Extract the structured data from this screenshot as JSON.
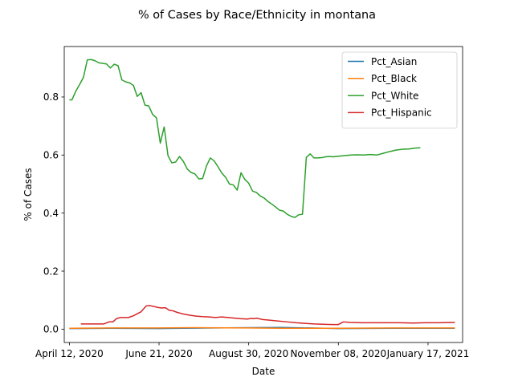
{
  "chart_data": {
    "type": "line",
    "title": "% of Cases by Race/Ethnicity in montana",
    "xlabel": "Date",
    "ylabel": "% of Cases",
    "xlim": [
      "2020-04-08",
      "2021-02-13"
    ],
    "ylim": [
      -0.046,
      0.974
    ],
    "x_ticks": [
      "2020-04-12",
      "2020-06-21",
      "2020-08-30",
      "2020-11-08",
      "2021-01-17"
    ],
    "x_tick_labels": [
      "April 12, 2020",
      "June 21, 2020",
      "August 30, 2020",
      "November 08, 2020",
      "January 17, 2021"
    ],
    "y_ticks": [
      0.0,
      0.2,
      0.4,
      0.6,
      0.8
    ],
    "y_tick_labels": [
      "0.0",
      "0.2",
      "0.4",
      "0.6",
      "0.8"
    ],
    "grid": false,
    "legend_position": "upper right",
    "series": [
      {
        "name": "Pct_Asian",
        "color": "#1f77b4",
        "points": [
          [
            "2020-04-12",
            0.002
          ],
          [
            "2020-05-12",
            0.003
          ],
          [
            "2020-06-21",
            0.002
          ],
          [
            "2020-07-10",
            0.003
          ],
          [
            "2020-08-30",
            0.005
          ],
          [
            "2020-09-25",
            0.006
          ],
          [
            "2020-11-08",
            0.002
          ],
          [
            "2020-12-20",
            0.003
          ],
          [
            "2021-02-07",
            0.003
          ]
        ]
      },
      {
        "name": "Pct_Black",
        "color": "#ff7f0e",
        "points": [
          [
            "2020-04-12",
            0.003
          ],
          [
            "2020-05-12",
            0.004
          ],
          [
            "2020-06-21",
            0.004
          ],
          [
            "2020-07-20",
            0.005
          ],
          [
            "2020-08-30",
            0.004
          ],
          [
            "2020-09-25",
            0.003
          ],
          [
            "2020-11-08",
            0.003
          ],
          [
            "2020-12-20",
            0.004
          ],
          [
            "2021-02-07",
            0.004
          ]
        ]
      },
      {
        "name": "Pct_White",
        "color": "#2ca02c",
        "points": [
          [
            "2020-04-12",
            0.79
          ],
          [
            "2020-04-14",
            0.79
          ],
          [
            "2020-04-17",
            0.82
          ],
          [
            "2020-04-20",
            0.843
          ],
          [
            "2020-04-23",
            0.868
          ],
          [
            "2020-04-26",
            0.928
          ],
          [
            "2020-04-29",
            0.929
          ],
          [
            "2020-05-02",
            0.925
          ],
          [
            "2020-05-05",
            0.918
          ],
          [
            "2020-05-08",
            0.916
          ],
          [
            "2020-05-11",
            0.914
          ],
          [
            "2020-05-14",
            0.9
          ],
          [
            "2020-05-17",
            0.913
          ],
          [
            "2020-05-20",
            0.908
          ],
          [
            "2020-05-23",
            0.859
          ],
          [
            "2020-05-26",
            0.852
          ],
          [
            "2020-05-29",
            0.849
          ],
          [
            "2020-06-01",
            0.84
          ],
          [
            "2020-06-04",
            0.802
          ],
          [
            "2020-06-07",
            0.815
          ],
          [
            "2020-06-10",
            0.772
          ],
          [
            "2020-06-13",
            0.769
          ],
          [
            "2020-06-16",
            0.74
          ],
          [
            "2020-06-19",
            0.728
          ],
          [
            "2020-06-22",
            0.641
          ],
          [
            "2020-06-25",
            0.697
          ],
          [
            "2020-06-28",
            0.598
          ],
          [
            "2020-07-01",
            0.573
          ],
          [
            "2020-07-04",
            0.576
          ],
          [
            "2020-07-07",
            0.595
          ],
          [
            "2020-07-10",
            0.578
          ],
          [
            "2020-07-13",
            0.552
          ],
          [
            "2020-07-16",
            0.54
          ],
          [
            "2020-07-19",
            0.535
          ],
          [
            "2020-07-22",
            0.518
          ],
          [
            "2020-07-25",
            0.519
          ],
          [
            "2020-07-28",
            0.562
          ],
          [
            "2020-07-31",
            0.59
          ],
          [
            "2020-08-03",
            0.58
          ],
          [
            "2020-08-06",
            0.56
          ],
          [
            "2020-08-09",
            0.538
          ],
          [
            "2020-08-12",
            0.523
          ],
          [
            "2020-08-15",
            0.5
          ],
          [
            "2020-08-18",
            0.497
          ],
          [
            "2020-08-21",
            0.479
          ],
          [
            "2020-08-24",
            0.539
          ],
          [
            "2020-08-27",
            0.516
          ],
          [
            "2020-08-30",
            0.503
          ],
          [
            "2020-09-02",
            0.476
          ],
          [
            "2020-09-05",
            0.471
          ],
          [
            "2020-09-08",
            0.459
          ],
          [
            "2020-09-11",
            0.452
          ],
          [
            "2020-09-14",
            0.44
          ],
          [
            "2020-09-17",
            0.431
          ],
          [
            "2020-09-20",
            0.421
          ],
          [
            "2020-09-23",
            0.41
          ],
          [
            "2020-09-26",
            0.407
          ],
          [
            "2020-09-29",
            0.396
          ],
          [
            "2020-10-02",
            0.389
          ],
          [
            "2020-10-05",
            0.385
          ],
          [
            "2020-10-08",
            0.394
          ],
          [
            "2020-10-11",
            0.396
          ],
          [
            "2020-10-14",
            0.592
          ],
          [
            "2020-10-17",
            0.604
          ],
          [
            "2020-10-20",
            0.59
          ],
          [
            "2020-10-23",
            0.59
          ],
          [
            "2020-10-26",
            0.591
          ],
          [
            "2020-10-29",
            0.594
          ],
          [
            "2020-11-01",
            0.595
          ],
          [
            "2020-11-04",
            0.594
          ],
          [
            "2020-11-08",
            0.596
          ],
          [
            "2020-11-13",
            0.598
          ],
          [
            "2020-11-18",
            0.6
          ],
          [
            "2020-11-23",
            0.601
          ],
          [
            "2020-11-28",
            0.6
          ],
          [
            "2020-12-03",
            0.602
          ],
          [
            "2020-12-08",
            0.6
          ],
          [
            "2020-12-13",
            0.606
          ],
          [
            "2020-12-18",
            0.612
          ],
          [
            "2020-12-23",
            0.617
          ],
          [
            "2020-12-28",
            0.62
          ],
          [
            "2021-01-02",
            0.621
          ],
          [
            "2021-01-07",
            0.624
          ],
          [
            "2021-01-11",
            0.625
          ]
        ]
      },
      {
        "name": "Pct_Hispanic",
        "color": "#d62728",
        "points": [
          [
            "2020-04-21",
            0.018
          ],
          [
            "2020-05-09",
            0.018
          ],
          [
            "2020-05-13",
            0.025
          ],
          [
            "2020-05-16",
            0.025
          ],
          [
            "2020-05-19",
            0.037
          ],
          [
            "2020-05-22",
            0.04
          ],
          [
            "2020-05-28",
            0.04
          ],
          [
            "2020-06-01",
            0.046
          ],
          [
            "2020-06-07",
            0.06
          ],
          [
            "2020-06-11",
            0.08
          ],
          [
            "2020-06-14",
            0.081
          ],
          [
            "2020-06-17",
            0.078
          ],
          [
            "2020-06-20",
            0.075
          ],
          [
            "2020-06-23",
            0.073
          ],
          [
            "2020-06-26",
            0.074
          ],
          [
            "2020-06-29",
            0.065
          ],
          [
            "2020-07-02",
            0.063
          ],
          [
            "2020-07-05",
            0.058
          ],
          [
            "2020-07-10",
            0.052
          ],
          [
            "2020-07-15",
            0.048
          ],
          [
            "2020-07-20",
            0.045
          ],
          [
            "2020-07-25",
            0.043
          ],
          [
            "2020-07-30",
            0.042
          ],
          [
            "2020-08-04",
            0.04
          ],
          [
            "2020-08-09",
            0.042
          ],
          [
            "2020-08-14",
            0.04
          ],
          [
            "2020-08-19",
            0.038
          ],
          [
            "2020-08-24",
            0.036
          ],
          [
            "2020-08-29",
            0.035
          ],
          [
            "2020-09-01",
            0.037
          ],
          [
            "2020-09-03",
            0.036
          ],
          [
            "2020-09-05",
            0.038
          ],
          [
            "2020-09-10",
            0.033
          ],
          [
            "2020-09-15",
            0.031
          ],
          [
            "2020-09-22",
            0.028
          ],
          [
            "2020-09-29",
            0.025
          ],
          [
            "2020-10-06",
            0.022
          ],
          [
            "2020-10-13",
            0.02
          ],
          [
            "2020-10-20",
            0.018
          ],
          [
            "2020-10-27",
            0.017
          ],
          [
            "2020-11-03",
            0.016
          ],
          [
            "2020-11-08",
            0.016
          ],
          [
            "2020-11-12",
            0.025
          ],
          [
            "2020-11-17",
            0.023
          ],
          [
            "2020-11-26",
            0.022
          ],
          [
            "2020-12-06",
            0.022
          ],
          [
            "2020-12-16",
            0.022
          ],
          [
            "2020-12-26",
            0.022
          ],
          [
            "2021-01-05",
            0.021
          ],
          [
            "2021-01-15",
            0.022
          ],
          [
            "2021-01-25",
            0.022
          ],
          [
            "2021-02-07",
            0.023
          ]
        ]
      }
    ]
  }
}
